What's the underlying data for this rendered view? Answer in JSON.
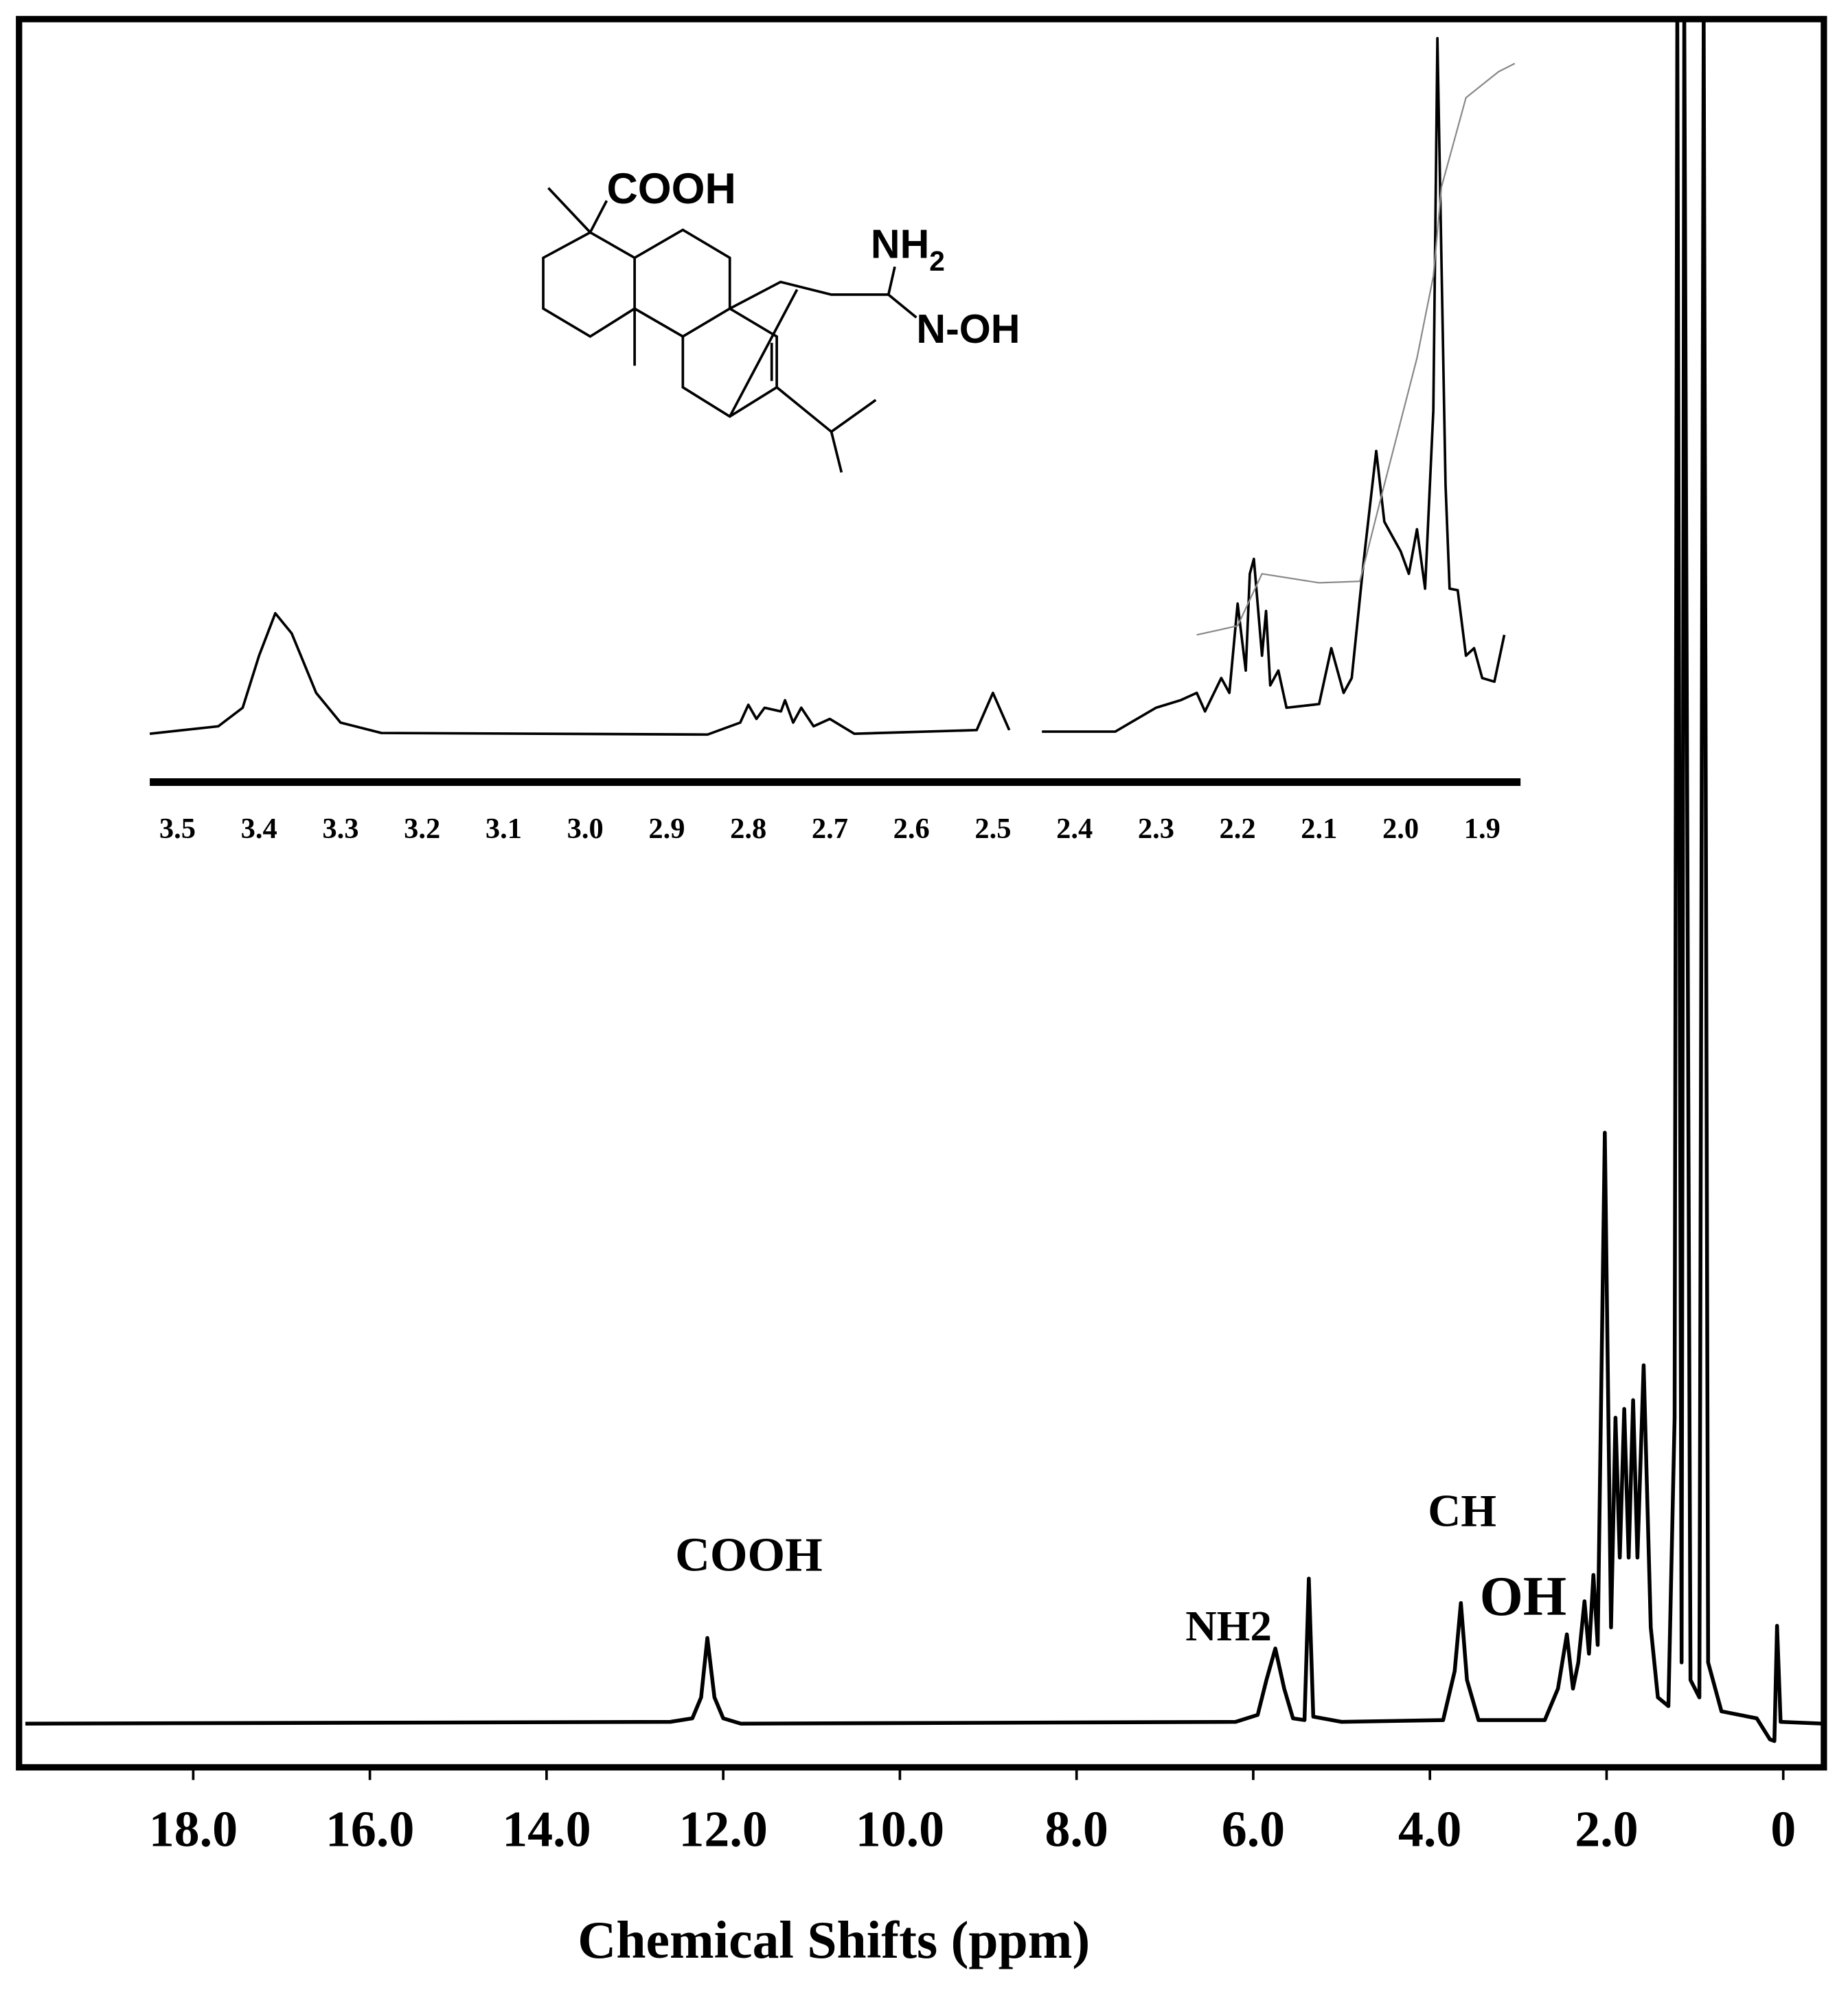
{
  "chart_data": [
    {
      "type": "line",
      "x_label": "Chemical Shifts (ppm)",
      "xlim": [
        19.9,
        -0.46
      ],
      "ylim": [
        0,
        100
      ],
      "xticks": [
        {
          "value": 18,
          "label": "18.0"
        },
        {
          "value": 16,
          "label": "16.0"
        },
        {
          "value": 14,
          "label": "14.0"
        },
        {
          "value": 12,
          "label": "12.0"
        },
        {
          "value": 10,
          "label": "10.0"
        },
        {
          "value": 8,
          "label": "8.0"
        },
        {
          "value": 6,
          "label": "6.0"
        },
        {
          "value": 4,
          "label": "4.0"
        },
        {
          "value": 2,
          "label": "2.0"
        },
        0
      ],
      "annotations": [
        "COOH",
        "NH2",
        "CH",
        "OH"
      ],
      "series": [
        {
          "color": "#000000",
          "x": [
            19.9,
            12.6,
            12.35,
            12.25,
            12.18,
            12.1,
            12.0,
            11.8,
            6.2,
            5.95,
            5.85,
            5.75,
            5.65,
            5.55,
            5.42,
            5.37,
            5.32,
            5.0,
            3.85,
            3.72,
            3.65,
            3.58,
            3.45,
            2.7,
            2.55,
            2.45,
            2.38,
            2.32,
            2.25,
            2.2,
            2.15,
            2.1,
            2.02,
            1.95,
            1.9,
            1.85,
            1.8,
            1.75,
            1.7,
            1.65,
            1.58,
            1.5,
            1.42,
            1.3,
            1.23,
            1.2,
            1.15,
            1.12,
            1.05,
            0.95,
            0.9,
            0.85,
            0.7,
            0.3,
            0.15,
            0.1,
            0.07,
            0.03,
            -0.46
          ],
          "values": [
            2.5,
            2.6,
            2.8,
            4.0,
            7.4,
            4.0,
            2.8,
            2.5,
            2.6,
            3.0,
            5.0,
            6.8,
            4.5,
            2.8,
            2.7,
            10.8,
            2.9,
            2.6,
            2.7,
            5.5,
            9.4,
            5.0,
            2.7,
            2.7,
            4.5,
            7.6,
            4.5,
            6.0,
            9.5,
            6.5,
            11,
            7,
            36.3,
            8,
            20,
            12,
            20.5,
            12,
            21,
            12,
            23,
            8,
            4,
            3.5,
            20,
            100,
            6,
            100,
            5,
            4,
            100,
            6,
            3.2,
            2.8,
            1.6,
            1.5,
            8.1,
            2.6,
            2.5
          ]
        }
      ]
    },
    {
      "type": "line",
      "xlim": [
        3.534,
        1.853
      ],
      "ylim": [
        0,
        100
      ],
      "xticks": [
        3.5,
        3.4,
        3.3,
        3.2,
        3.1,
        {
          "value": 3,
          "label": "3.0"
        },
        2.9,
        2.8,
        2.7,
        2.6,
        2.5,
        2.4,
        2.3,
        2.2,
        2.1,
        {
          "value": 2,
          "label": "2.0"
        },
        1.9
      ],
      "series": [
        {
          "color": "#000000",
          "x": [
            3.534,
            3.45,
            3.42,
            3.4,
            3.38,
            3.36,
            3.33,
            3.3,
            3.25,
            2.85,
            2.81,
            2.8,
            2.79,
            2.78,
            2.76,
            2.755,
            2.745,
            2.735,
            2.72,
            2.7,
            2.67,
            2.52,
            2.5,
            2.48,
            2.45,
            2.44,
            2.35,
            2.3,
            2.27,
            2.25,
            2.24,
            2.22,
            2.21,
            2.2,
            2.19,
            2.185,
            2.18,
            2.17,
            2.165,
            2.16,
            2.15,
            2.14,
            2.1,
            2.085,
            2.07,
            2.06,
            2.045,
            2.03,
            2.02,
            2.0,
            1.99,
            1.98,
            1.97,
            1.96,
            1.955,
            1.945,
            1.94,
            1.93,
            1.92,
            1.91,
            1.9,
            1.885,
            1.873
          ],
          "values": [
            6.5,
            7.5,
            10,
            17,
            22.7,
            20,
            12,
            8,
            6.6,
            6.4,
            8,
            10.4,
            8.5,
            10,
            9.5,
            11,
            8,
            10,
            7.5,
            8.5,
            6.5,
            7,
            12,
            7,
            null,
            6.8,
            6.8,
            10,
            11,
            12,
            9.5,
            14,
            12,
            24,
            15,
            28,
            30,
            17,
            23,
            13,
            15,
            10,
            10.5,
            18,
            12,
            14,
            30,
            44.5,
            35,
            31,
            28,
            34,
            26,
            50,
            100,
            40,
            26,
            25.8,
            17,
            18,
            14,
            13.5,
            19.8
          ]
        },
        {
          "color": "#888888",
          "x": [
            2.25,
            2.2,
            2.17,
            2.1,
            2.05,
            2.02,
            1.98,
            1.96,
            1.95,
            1.92,
            1.88,
            1.86
          ],
          "values": [
            19.8,
            21,
            28,
            26.8,
            27,
            40,
            57,
            68,
            80,
            92,
            95.5,
            96.6
          ]
        }
      ]
    }
  ],
  "structure": {
    "labels": [
      "COOH",
      "NH",
      "2",
      "N-OH"
    ]
  }
}
